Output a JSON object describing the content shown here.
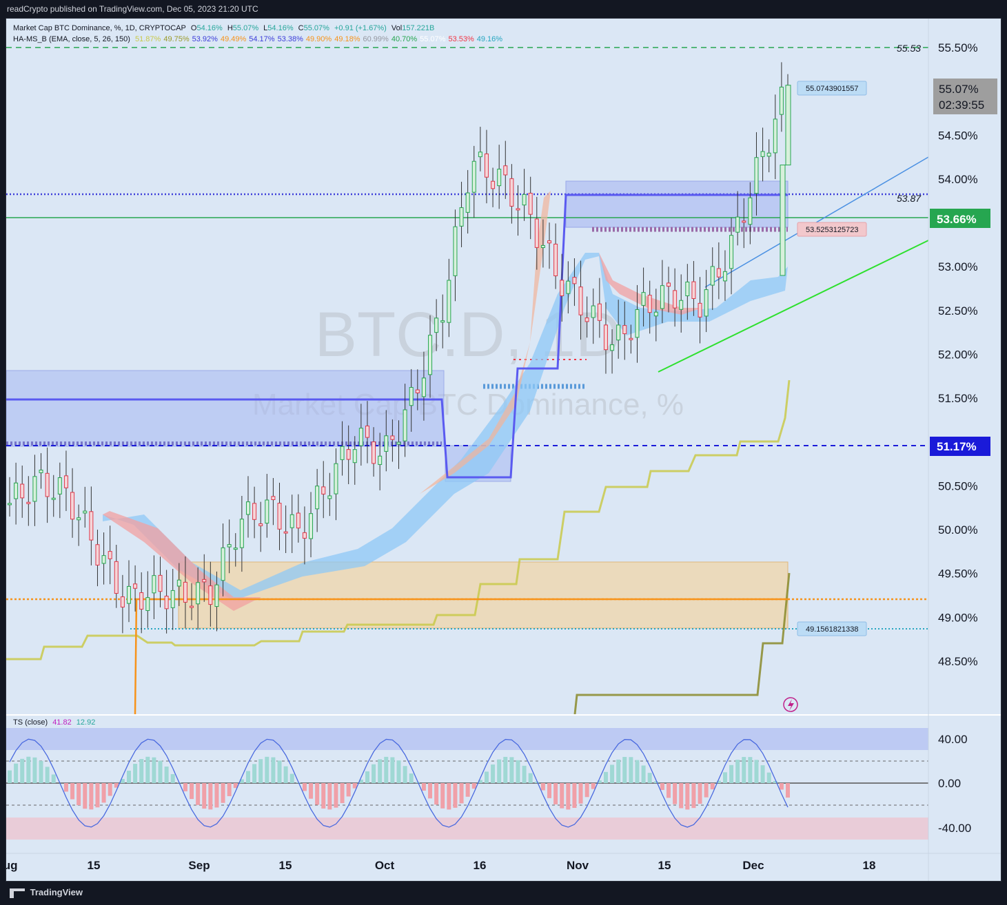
{
  "publisher": "readCrypto published on TradingView.com, Dec 05, 2023 21:20 UTC",
  "legend": {
    "symbol": "Market Cap BTC Dominance, %, 1D, CRYPTOCAP",
    "o_label": "O",
    "o": "54.16%",
    "h_label": "H",
    "h": "55.07%",
    "l_label": "L",
    "l": "54.16%",
    "c_label": "C",
    "c": "55.07%",
    "change": "+0.91 (+1.67%)",
    "vol_label": "Vol",
    "vol": "157.221B",
    "indicator": "HA-MS_B (EMA, close, 5, 26, 150)",
    "ind_values": [
      {
        "v": "51.87%",
        "color": "#c9c94a"
      },
      {
        "v": "49.75%",
        "color": "#9a9a2a"
      },
      {
        "v": "53.92%",
        "color": "#3d3dd9"
      },
      {
        "v": "49.49%",
        "color": "#f7931a"
      },
      {
        "v": "54.17%",
        "color": "#3d3dd9"
      },
      {
        "v": "53.38%",
        "color": "#3d3dd9"
      },
      {
        "v": "49.90%",
        "color": "#f7931a"
      },
      {
        "v": "49.18%",
        "color": "#f7931a"
      },
      {
        "v": "60.99%",
        "color": "#9598a1"
      },
      {
        "v": "40.70%",
        "color": "#26a650"
      },
      {
        "v": "55.07%",
        "color": "#ffffff"
      },
      {
        "v": "53.53%",
        "color": "#f23645"
      },
      {
        "v": "49.16%",
        "color": "#26a6c0"
      }
    ],
    "ts_label": "TS (close)",
    "ts_v1": "41.82",
    "ts_v2": "12.92"
  },
  "watermark": {
    "symbol": "BTC.D, 1D",
    "name": "Market Cap BTC Dominance, %"
  },
  "price_axis": [
    "55.50%",
    "55.00%",
    "54.50%",
    "54.00%",
    "53.50%",
    "53.00%",
    "52.50%",
    "52.00%",
    "51.50%",
    "51.00%",
    "50.50%",
    "50.00%",
    "49.50%",
    "49.00%",
    "48.50%"
  ],
  "osc_axis": [
    "40.00",
    "0.00",
    "-40.00"
  ],
  "time_axis": [
    "Aug",
    "15",
    "Sep",
    "15",
    "Oct",
    "16",
    "Nov",
    "15",
    "Dec",
    "18"
  ],
  "labels": {
    "current_price": "55.07%",
    "countdown": "02:39:55",
    "green_level": "53.66%",
    "blue_level": "51.17%",
    "level_5553": "55.53",
    "level_5387": "53.87",
    "tag_high": "55.0743901557",
    "tag_mid": "53.5253125723",
    "tag_low": "49.1561821338"
  },
  "brand": "TradingView",
  "chart_data": {
    "type": "candlestick",
    "title": "Market Cap BTC Dominance, %",
    "interval": "1D",
    "ylim": [
      48.2,
      55.7
    ],
    "last": {
      "open": 54.16,
      "high": 55.07,
      "low": 54.16,
      "close": 55.07,
      "change": 0.91,
      "change_pct": 1.67
    },
    "levels": [
      55.53,
      53.87,
      53.66,
      51.17,
      49.5
    ],
    "series_close_approx": [
      {
        "date": "Aug 07",
        "close": 50.3
      },
      {
        "date": "Aug 10",
        "close": 50.55
      },
      {
        "date": "Aug 14",
        "close": 50.4
      },
      {
        "date": "Aug 17",
        "close": 49.8
      },
      {
        "date": "Aug 21",
        "close": 49.2
      },
      {
        "date": "Aug 28",
        "close": 49.3
      },
      {
        "date": "Sep 01",
        "close": 49.25
      },
      {
        "date": "Sep 08",
        "close": 49.3
      },
      {
        "date": "Sep 14",
        "close": 50.1
      },
      {
        "date": "Sep 20",
        "close": 50.25
      },
      {
        "date": "Sep 27",
        "close": 49.95
      },
      {
        "date": "Oct 03",
        "close": 50.5
      },
      {
        "date": "Oct 09",
        "close": 51.05
      },
      {
        "date": "Oct 12",
        "close": 50.85
      },
      {
        "date": "Oct 16",
        "close": 51.5
      },
      {
        "date": "Oct 20",
        "close": 52.5
      },
      {
        "date": "Oct 24",
        "close": 54.2
      },
      {
        "date": "Oct 28",
        "close": 54.0
      },
      {
        "date": "Nov 02",
        "close": 53.6
      },
      {
        "date": "Nov 06",
        "close": 52.9
      },
      {
        "date": "Nov 10",
        "close": 52.5
      },
      {
        "date": "Nov 14",
        "close": 52.1
      },
      {
        "date": "Nov 18",
        "close": 52.55
      },
      {
        "date": "Nov 23",
        "close": 52.7
      },
      {
        "date": "Nov 27",
        "close": 52.6
      },
      {
        "date": "Dec 01",
        "close": 53.2
      },
      {
        "date": "Dec 04",
        "close": 54.16
      },
      {
        "date": "Dec 05",
        "close": 55.07
      }
    ],
    "oscillator": {
      "name": "TS (close)",
      "ylim": [
        -55,
        50
      ],
      "values": [
        41.82,
        12.92
      ]
    }
  }
}
